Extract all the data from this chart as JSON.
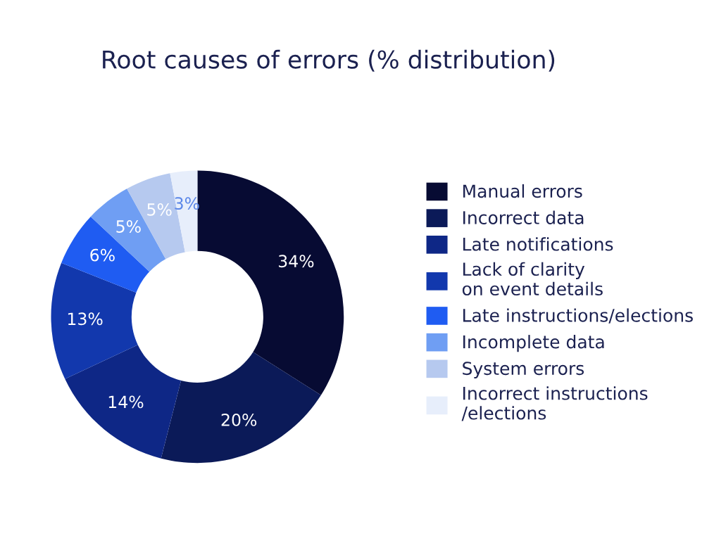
{
  "chart_data": {
    "type": "donut",
    "title": "Root causes of errors (% distribution)",
    "categories": [
      "Manual errors",
      "Incorrect data",
      "Late notifications",
      "Lack of clarity\non event details",
      "Late instructions/elections",
      "Incomplete data",
      "System errors",
      "Incorrect instructions\n/elections"
    ],
    "values": [
      34,
      20,
      14,
      13,
      6,
      5,
      5,
      3
    ],
    "value_labels": [
      "34%",
      "20%",
      "14%",
      "13%",
      "6%",
      "5%",
      "5%",
      "3%"
    ],
    "colors": [
      "#070b33",
      "#0b1a58",
      "#0e2786",
      "#1238ad",
      "#1f5cf2",
      "#6f9ef3",
      "#b6c9ef",
      "#e7eefb"
    ],
    "legend": "right"
  }
}
